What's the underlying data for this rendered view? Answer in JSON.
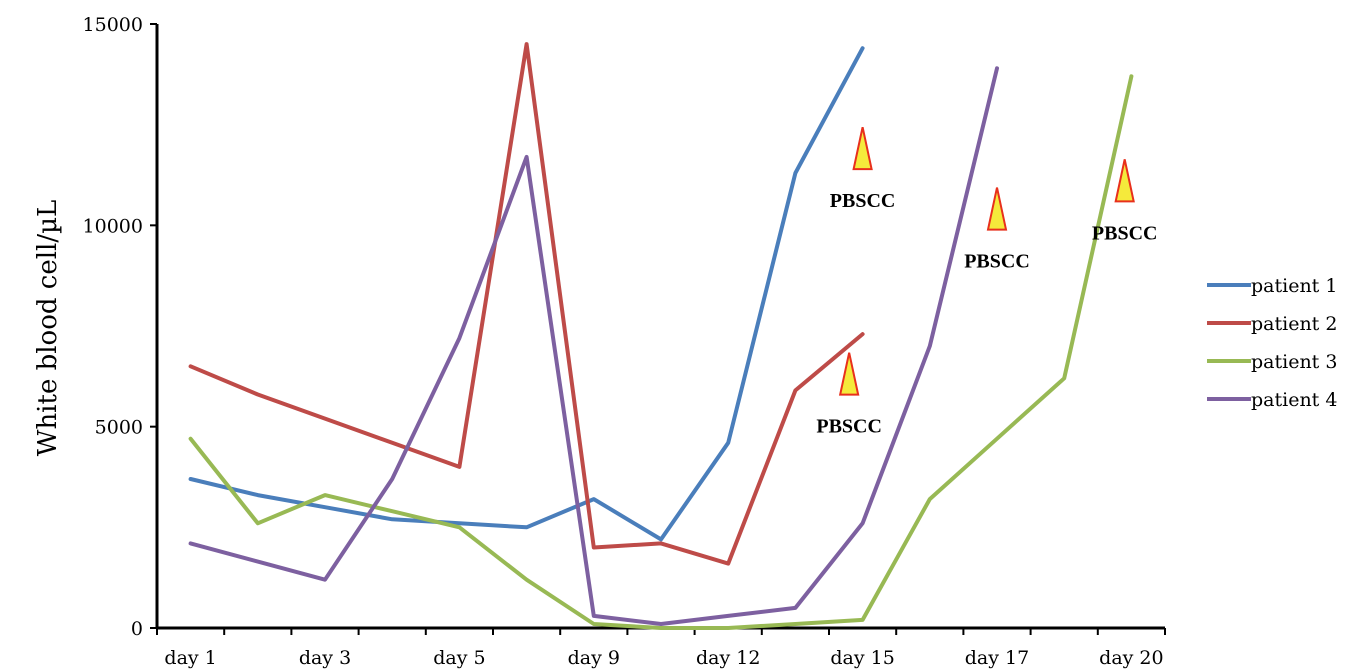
{
  "chart_data": {
    "type": "line",
    "title": "",
    "xlabel": "",
    "ylabel": "White blood cell/µL",
    "ylim": [
      0,
      15000
    ],
    "yticks": [
      0,
      5000,
      10000,
      15000
    ],
    "xlim": [
      0,
      15
    ],
    "xtick_labels": [
      "day 1",
      "day 3",
      "day 5",
      "day 9",
      "day 12",
      "day 15",
      "day 17",
      "day 20"
    ],
    "grid": false,
    "legend_position": "right",
    "series": [
      {
        "name": "patient 1",
        "color": "#4a7ebb",
        "x": [
          0.5,
          1.5,
          2.5,
          3.5,
          4.5,
          5.5,
          6.5,
          7.5,
          8.5,
          9.5,
          10.5
        ],
        "y": [
          3700,
          3300,
          3000,
          2700,
          2600,
          2500,
          3200,
          2200,
          4600,
          11300,
          14400
        ]
      },
      {
        "name": "patient 2",
        "color": "#be4b48",
        "x": [
          0.5,
          1.5,
          2.5,
          3.5,
          4.5,
          5.5,
          6.5,
          7.5,
          8.5,
          9.5,
          10.5
        ],
        "y": [
          6500,
          5800,
          5200,
          4600,
          4000,
          14500,
          2000,
          2100,
          1600,
          5900,
          7300
        ]
      },
      {
        "name": "patient 3",
        "color": "#98b954",
        "x": [
          0.5,
          1.5,
          2.5,
          3.5,
          4.5,
          5.5,
          6.5,
          7.5,
          8.5,
          9.5,
          10.5,
          11.5,
          12.5,
          13.5,
          14.5
        ],
        "y": [
          4700,
          2600,
          3300,
          2900,
          2500,
          1200,
          100,
          0,
          0,
          100,
          200,
          3200,
          4700,
          6200,
          13700
        ]
      },
      {
        "name": "patient 4",
        "color": "#7d60a0",
        "x": [
          0.5,
          1.5,
          2.5,
          3.5,
          4.5,
          5.5,
          6.5,
          7.5,
          8.5,
          9.5,
          10.5,
          11.5,
          12.5
        ],
        "y": [
          2100,
          1650,
          1200,
          3700,
          7200,
          11700,
          300,
          100,
          300,
          500,
          2600,
          7000,
          13900
        ]
      }
    ],
    "annotations": [
      {
        "text": "PBSCC",
        "x": 10.5,
        "y": 10600
      },
      {
        "text": "PBSCC",
        "x": 10.3,
        "y": 5000
      },
      {
        "text": "PBSCC",
        "x": 12.5,
        "y": 9100
      },
      {
        "text": "PBSCC",
        "x": 14.4,
        "y": 9800
      }
    ],
    "annotation_style": {
      "fill": "#f5ea3b",
      "stroke": "#e8301c"
    }
  }
}
